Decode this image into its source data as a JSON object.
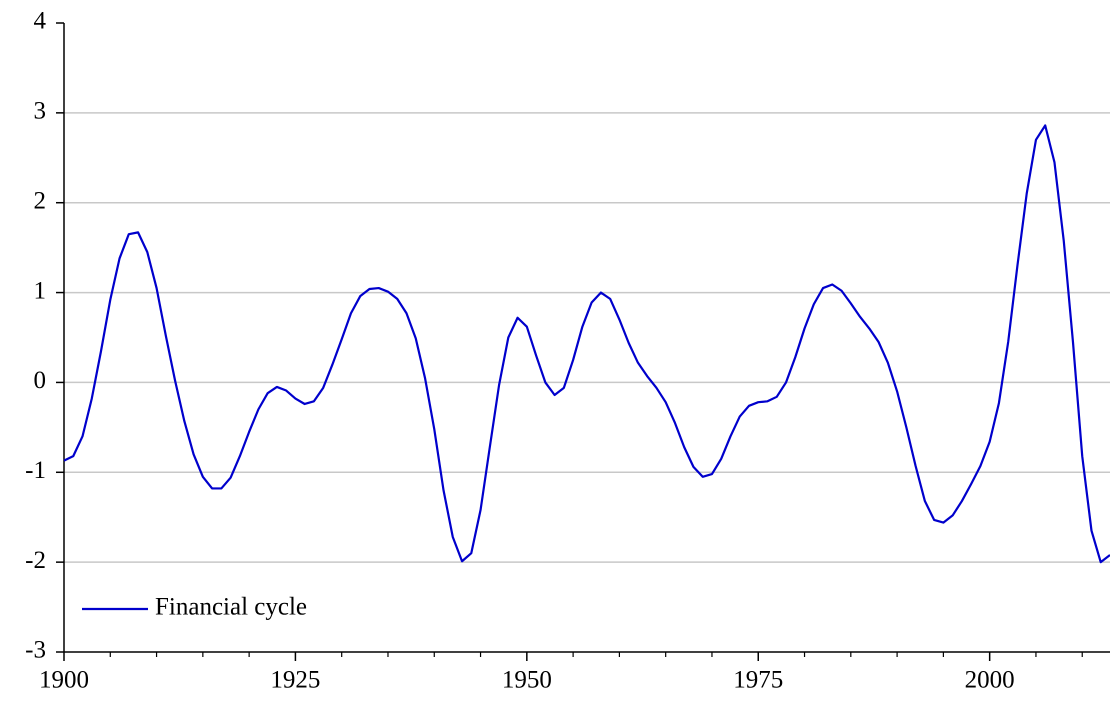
{
  "chart_data": {
    "type": "line",
    "x": [
      1900,
      1901,
      1902,
      1903,
      1904,
      1905,
      1906,
      1907,
      1908,
      1909,
      1910,
      1911,
      1912,
      1913,
      1914,
      1915,
      1916,
      1917,
      1918,
      1919,
      1920,
      1921,
      1922,
      1923,
      1924,
      1925,
      1926,
      1927,
      1928,
      1929,
      1930,
      1931,
      1932,
      1933,
      1934,
      1935,
      1936,
      1937,
      1938,
      1939,
      1940,
      1941,
      1942,
      1943,
      1944,
      1945,
      1946,
      1947,
      1948,
      1949,
      1950,
      1951,
      1952,
      1953,
      1954,
      1955,
      1956,
      1957,
      1958,
      1959,
      1960,
      1961,
      1962,
      1963,
      1964,
      1965,
      1966,
      1967,
      1968,
      1969,
      1970,
      1971,
      1972,
      1973,
      1974,
      1975,
      1976,
      1977,
      1978,
      1979,
      1980,
      1981,
      1982,
      1983,
      1984,
      1985,
      1986,
      1987,
      1988,
      1989,
      1990,
      1991,
      1992,
      1993,
      1994,
      1995,
      1996,
      1997,
      1998,
      1999,
      2000,
      2001,
      2002,
      2003,
      2004,
      2005,
      2006,
      2007,
      2008,
      2009,
      2010,
      2011,
      2012,
      2013
    ],
    "series": [
      {
        "name": "Financial cycle",
        "color": "#0000cc",
        "values": [
          -0.87,
          -0.82,
          -0.6,
          -0.18,
          0.35,
          0.92,
          1.38,
          1.65,
          1.67,
          1.45,
          1.05,
          0.52,
          0.02,
          -0.43,
          -0.8,
          -1.05,
          -1.18,
          -1.18,
          -1.06,
          -0.82,
          -0.55,
          -0.3,
          -0.12,
          -0.05,
          -0.09,
          -0.18,
          -0.24,
          -0.21,
          -0.06,
          0.2,
          0.48,
          0.77,
          0.96,
          1.04,
          1.05,
          1.01,
          0.93,
          0.77,
          0.49,
          0.05,
          -0.52,
          -1.2,
          -1.72,
          -1.99,
          -1.9,
          -1.42,
          -0.72,
          -0.03,
          0.5,
          0.72,
          0.62,
          0.3,
          0.0,
          -0.14,
          -0.06,
          0.25,
          0.62,
          0.89,
          1.0,
          0.93,
          0.7,
          0.44,
          0.22,
          0.07,
          -0.06,
          -0.22,
          -0.45,
          -0.72,
          -0.94,
          -1.05,
          -1.02,
          -0.85,
          -0.6,
          -0.38,
          -0.26,
          -0.22,
          -0.21,
          -0.16,
          0.0,
          0.28,
          0.6,
          0.87,
          1.05,
          1.09,
          1.02,
          0.88,
          0.73,
          0.6,
          0.45,
          0.22,
          -0.1,
          -0.5,
          -0.93,
          -1.32,
          -1.53,
          -1.56,
          -1.48,
          -1.32,
          -1.13,
          -0.93,
          -0.66,
          -0.23,
          0.45,
          1.3,
          2.1,
          2.7,
          2.86,
          2.45,
          1.58,
          0.45,
          -0.82,
          -1.65,
          -2.0,
          -1.92
        ]
      }
    ],
    "xlim": [
      1900,
      2013
    ],
    "xticks": [
      1900,
      1925,
      1950,
      1975,
      2000
    ],
    "xminorticks": [
      1905,
      1910,
      1915,
      1920,
      1930,
      1935,
      1940,
      1945,
      1955,
      1960,
      1965,
      1970,
      1980,
      1985,
      1990,
      1995,
      2005,
      2010
    ],
    "ylim": [
      -3,
      4
    ],
    "yticks": [
      -3,
      -2,
      -1,
      0,
      1,
      2,
      3,
      4
    ],
    "grid": true,
    "legend": "lower left"
  }
}
